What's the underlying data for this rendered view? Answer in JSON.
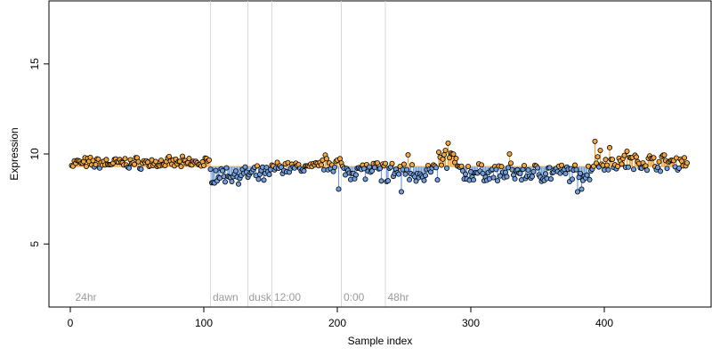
{
  "chart_data": {
    "type": "scatter",
    "title": "",
    "xlabel": "Sample index",
    "ylabel": "Expression",
    "xlim": [
      -16,
      480
    ],
    "ylim": [
      1.5,
      18.5
    ],
    "xticks": [
      0,
      100,
      200,
      300,
      400
    ],
    "yticks": [
      5,
      10,
      15
    ],
    "baseline": 9.3,
    "grid": false,
    "legend": "none",
    "colors": {
      "above": "#f2a63c",
      "below": "#6f9fdf",
      "point_stroke": "#000000",
      "vline": "#d9d9d9",
      "annotation": "#9a9a9a"
    },
    "vlines": [
      105,
      133,
      151,
      203,
      236
    ],
    "annotations": [
      {
        "x": 3,
        "label": "24hr"
      },
      {
        "x": 106,
        "label": "dawn"
      },
      {
        "x": 133,
        "label": "dusk"
      },
      {
        "x": 152,
        "label": "12:00"
      },
      {
        "x": 204,
        "label": "0:00"
      },
      {
        "x": 237,
        "label": "48hr"
      }
    ],
    "segments": [
      {
        "x0": 1,
        "x1": 104,
        "level": 9.5,
        "amp": 0.25
      },
      {
        "x0": 105,
        "x1": 150,
        "level": 8.85,
        "amp": 0.35
      },
      {
        "x0": 151,
        "x1": 186,
        "level": 9.25,
        "amp": 0.25
      },
      {
        "x0": 187,
        "x1": 202,
        "level": 9.5,
        "amp": 0.35
      },
      {
        "x0": 203,
        "x1": 236,
        "level": 9.1,
        "amp": 0.4
      },
      {
        "x0": 237,
        "x1": 275,
        "level": 9.0,
        "amp": 0.45
      },
      {
        "x0": 276,
        "x1": 290,
        "level": 9.6,
        "amp": 0.45
      },
      {
        "x0": 291,
        "x1": 390,
        "level": 8.95,
        "amp": 0.4
      },
      {
        "x0": 391,
        "x1": 462,
        "level": 9.55,
        "amp": 0.35
      }
    ],
    "highlights": [
      {
        "x": 201,
        "y": 8.05
      },
      {
        "x": 233,
        "y": 8.5
      },
      {
        "x": 253,
        "y": 9.95
      },
      {
        "x": 283,
        "y": 10.6
      },
      {
        "x": 281,
        "y": 10.2
      },
      {
        "x": 285,
        "y": 10.05
      },
      {
        "x": 393,
        "y": 10.7
      },
      {
        "x": 397,
        "y": 10.2
      },
      {
        "x": 404,
        "y": 10.35
      },
      {
        "x": 380,
        "y": 7.9
      },
      {
        "x": 383,
        "y": 8.05
      },
      {
        "x": 248,
        "y": 7.9
      },
      {
        "x": 318,
        "y": 9.3
      },
      {
        "x": 329,
        "y": 10.0
      },
      {
        "x": 417,
        "y": 10.15
      }
    ]
  }
}
